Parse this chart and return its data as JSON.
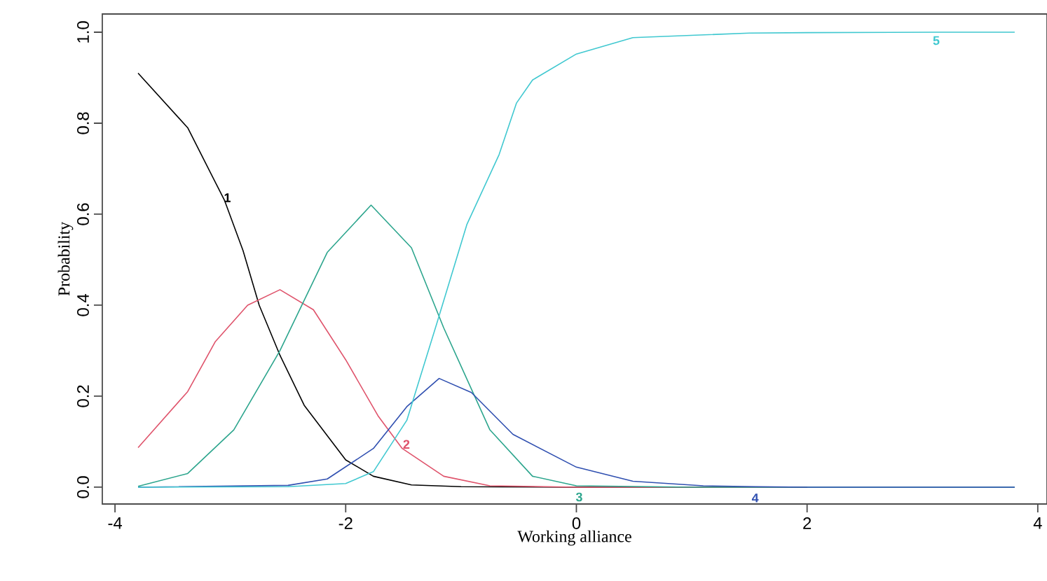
{
  "chart_data": {
    "type": "line",
    "xlabel": "Working alliance",
    "ylabel": "Probability",
    "xlim": [
      -4.11,
      4.08
    ],
    "ylim": [
      -0.037,
      1.04
    ],
    "xticks": [
      -4,
      -2,
      0,
      2,
      4
    ],
    "yticks": [
      {
        "value": 0,
        "label": "0.0"
      },
      {
        "value": 0.2,
        "label": "0.2"
      },
      {
        "value": 0.4,
        "label": "0.4"
      },
      {
        "value": 0.6,
        "label": "0.6"
      },
      {
        "value": 0.8,
        "label": "0.8"
      },
      {
        "value": 1,
        "label": "1.0"
      }
    ],
    "grid": false,
    "legend": false,
    "marker": "none",
    "line_style": "solid",
    "series": [
      {
        "name": "1",
        "color": "#000000",
        "x": [
          -3.8,
          -3.37,
          -3.05,
          -2.89,
          -2.75,
          -2.57,
          -2.36,
          -2.0,
          -1.76,
          -1.43,
          -1.0,
          0,
          1,
          2
        ],
        "values": [
          0.91,
          0.79,
          0.63,
          0.52,
          0.4,
          0.29,
          0.18,
          0.06,
          0.024,
          0.005,
          0.001,
          0,
          0,
          0
        ]
      },
      {
        "name": "2",
        "color": "#df536b",
        "x": [
          -3.8,
          -3.37,
          -3.13,
          -2.85,
          -2.57,
          -2.28,
          -2.0,
          -1.72,
          -1.51,
          -1.15,
          -0.75,
          0,
          1,
          2
        ],
        "values": [
          0.087,
          0.21,
          0.32,
          0.4,
          0.434,
          0.39,
          0.28,
          0.157,
          0.085,
          0.024,
          0.003,
          0,
          0,
          0
        ]
      },
      {
        "name": "3",
        "color": "#2ca58d",
        "x": [
          -3.8,
          -3.37,
          -2.97,
          -2.57,
          -2.16,
          -1.78,
          -1.43,
          -1.15,
          -0.75,
          -0.38,
          0,
          1,
          2,
          3,
          3.8
        ],
        "values": [
          0.002,
          0.03,
          0.126,
          0.3,
          0.516,
          0.62,
          0.526,
          0.35,
          0.126,
          0.024,
          0.003,
          0,
          0,
          0,
          0
        ]
      },
      {
        "name": "4",
        "color": "#2f4fb0",
        "x": [
          -3.8,
          -2.5,
          -2.16,
          -1.76,
          -1.47,
          -1.19,
          -0.91,
          -0.55,
          0,
          0.49,
          1.1,
          1.55,
          2,
          3,
          3.8
        ],
        "values": [
          0,
          0.004,
          0.018,
          0.085,
          0.177,
          0.239,
          0.208,
          0.116,
          0.044,
          0.013,
          0.003,
          0.001,
          0,
          0,
          0
        ]
      },
      {
        "name": "5",
        "color": "#40c8d0",
        "x": [
          -3.8,
          -2.5,
          -2.0,
          -1.76,
          -1.47,
          -1.21,
          -0.95,
          -0.67,
          -0.52,
          -0.38,
          0,
          0.49,
          1.5,
          2,
          3.12,
          3.8
        ],
        "values": [
          0,
          0.001,
          0.008,
          0.034,
          0.147,
          0.36,
          0.577,
          0.731,
          0.844,
          0.895,
          0.952,
          0.988,
          0.998,
          0.999,
          1.0,
          1.0
        ]
      }
    ]
  }
}
